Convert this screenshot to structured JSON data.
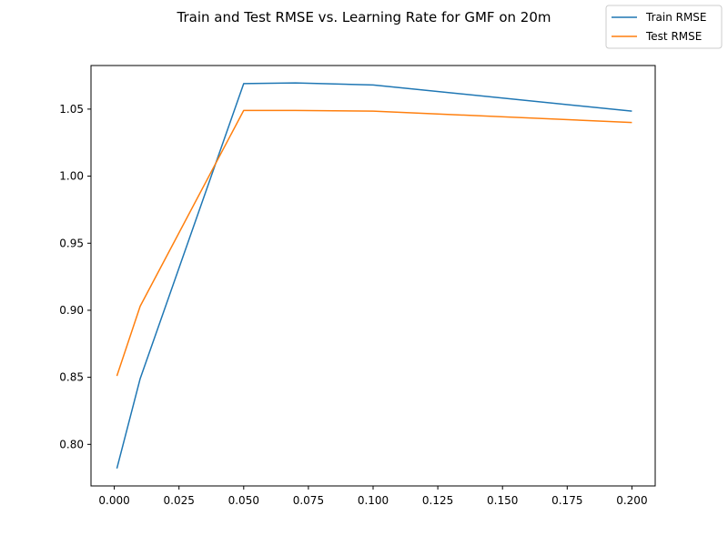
{
  "chart_data": {
    "type": "line",
    "title": "Train and Test RMSE vs. Learning Rate for GMF on 20m",
    "xlabel": "",
    "ylabel": "",
    "x": [
      0.001,
      0.01,
      0.05,
      0.07,
      0.1,
      0.2
    ],
    "series": [
      {
        "name": "Train RMSE",
        "color": "#1f77b4",
        "values": [
          0.782,
          0.849,
          1.069,
          1.0695,
          1.068,
          1.0485
        ]
      },
      {
        "name": "Test RMSE",
        "color": "#ff7f0e",
        "values": [
          0.851,
          0.903,
          1.049,
          1.049,
          1.0485,
          1.04
        ]
      }
    ],
    "xlim": [
      -0.009,
      0.209
    ],
    "ylim": [
      0.769,
      1.0825
    ],
    "xticks": [
      0.0,
      0.025,
      0.05,
      0.075,
      0.1,
      0.125,
      0.15,
      0.175,
      0.2
    ],
    "xtick_labels": [
      "0.000",
      "0.025",
      "0.050",
      "0.075",
      "0.100",
      "0.125",
      "0.150",
      "0.175",
      "0.200"
    ],
    "yticks": [
      0.8,
      0.85,
      0.9,
      0.95,
      1.0,
      1.05
    ],
    "ytick_labels": [
      "0.80",
      "0.85",
      "0.90",
      "0.95",
      "1.00",
      "1.05"
    ],
    "grid": false,
    "legend_position": "top-right"
  }
}
